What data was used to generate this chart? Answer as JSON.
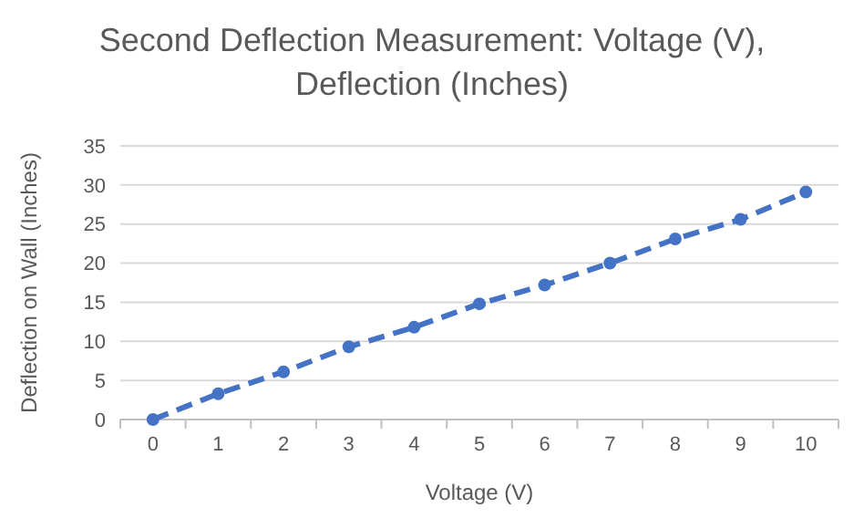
{
  "chart_data": {
    "type": "line",
    "title": "Second Deflection Measurement: Voltage (V), Deflection (Inches)",
    "xlabel": "Voltage (V)",
    "ylabel": "Deflection on Wall (Inches)",
    "categories": [
      "0",
      "1",
      "2",
      "3",
      "4",
      "5",
      "6",
      "7",
      "8",
      "9",
      "10"
    ],
    "series": [
      {
        "color": "#4472c4",
        "values": [
          0,
          3.3,
          6.1,
          9.3,
          11.8,
          14.8,
          17.2,
          20.0,
          23.1,
          25.6,
          29.1
        ]
      }
    ],
    "ylim": [
      0,
      35
    ],
    "yticks": [
      0,
      5,
      10,
      15,
      20,
      25,
      30,
      35
    ],
    "grid": "y",
    "marker": "circle",
    "line_style": "dashed"
  }
}
